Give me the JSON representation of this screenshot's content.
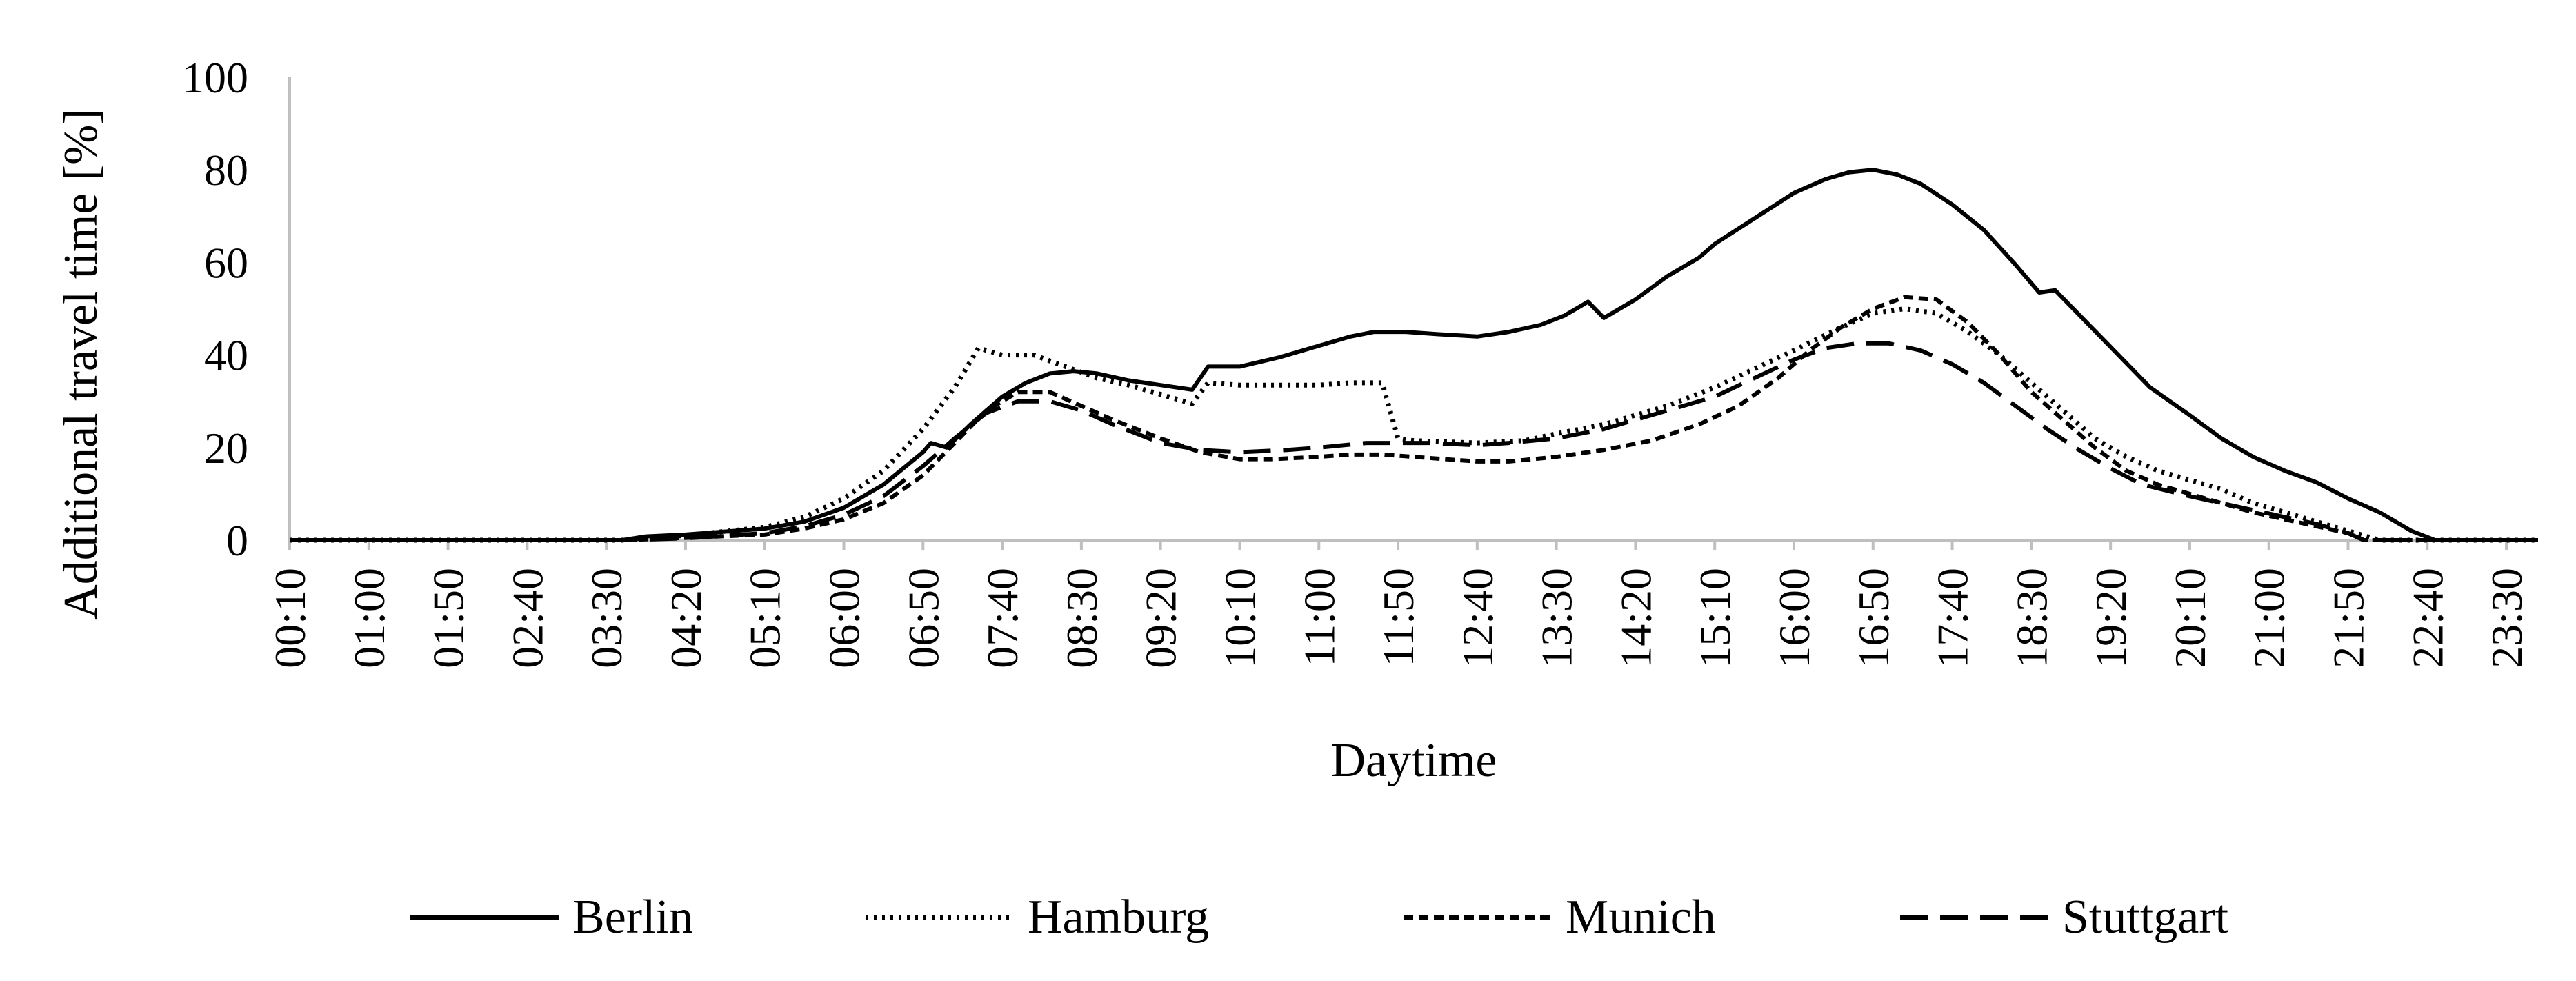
{
  "chart_data": {
    "type": "line",
    "title": "",
    "xlabel": "Daytime",
    "ylabel": "Additional travel time [%]",
    "ylim": [
      0,
      100
    ],
    "yticks": [
      0,
      20,
      40,
      60,
      80,
      100
    ],
    "xticks": [
      "00:10",
      "01:00",
      "01:50",
      "02:40",
      "03:30",
      "04:20",
      "05:10",
      "06:00",
      "06:50",
      "07:40",
      "08:30",
      "09:20",
      "10:10",
      "11:00",
      "11:50",
      "12:40",
      "13:30",
      "14:20",
      "15:10",
      "16:00",
      "16:50",
      "17:40",
      "18:30",
      "19:20",
      "20:10",
      "21:00",
      "21:50",
      "22:40",
      "23:30"
    ],
    "xlim": [
      "00:10",
      "23:50"
    ],
    "grid": false,
    "legend_position": "bottom",
    "series": [
      {
        "name": "Berlin",
        "dash": "solid",
        "color": "#000000",
        "points": [
          [
            "00:10",
            0
          ],
          [
            "03:40",
            0
          ],
          [
            "03:55",
            0.8
          ],
          [
            "04:20",
            1.2
          ],
          [
            "05:10",
            2.5
          ],
          [
            "05:35",
            4
          ],
          [
            "06:00",
            7
          ],
          [
            "06:25",
            12
          ],
          [
            "06:50",
            19
          ],
          [
            "06:55",
            21
          ],
          [
            "07:05",
            20
          ],
          [
            "07:20",
            25
          ],
          [
            "07:40",
            31
          ],
          [
            "07:55",
            34
          ],
          [
            "08:10",
            36
          ],
          [
            "08:25",
            36.5
          ],
          [
            "08:40",
            36
          ],
          [
            "09:00",
            34.5
          ],
          [
            "09:20",
            33.5
          ],
          [
            "09:40",
            32.5
          ],
          [
            "09:50",
            37.5
          ],
          [
            "10:10",
            37.5
          ],
          [
            "10:35",
            39.5
          ],
          [
            "11:00",
            42
          ],
          [
            "11:20",
            44
          ],
          [
            "11:35",
            45
          ],
          [
            "11:55",
            45
          ],
          [
            "12:15",
            44.5
          ],
          [
            "12:40",
            44
          ],
          [
            "13:00",
            45
          ],
          [
            "13:20",
            46.5
          ],
          [
            "13:35",
            48.5
          ],
          [
            "13:50",
            51.5
          ],
          [
            "14:00",
            48
          ],
          [
            "14:20",
            52
          ],
          [
            "14:40",
            57
          ],
          [
            "15:00",
            61
          ],
          [
            "15:10",
            64
          ],
          [
            "15:35",
            69.5
          ],
          [
            "16:00",
            75
          ],
          [
            "16:20",
            78
          ],
          [
            "16:35",
            79.5
          ],
          [
            "16:50",
            80
          ],
          [
            "17:05",
            79
          ],
          [
            "17:20",
            77
          ],
          [
            "17:40",
            72.5
          ],
          [
            "18:00",
            67
          ],
          [
            "18:20",
            59.5
          ],
          [
            "18:35",
            53.5
          ],
          [
            "18:45",
            54
          ],
          [
            "19:05",
            47
          ],
          [
            "19:25",
            40
          ],
          [
            "19:45",
            33
          ],
          [
            "20:10",
            27
          ],
          [
            "20:30",
            22
          ],
          [
            "20:50",
            18
          ],
          [
            "21:10",
            15
          ],
          [
            "21:30",
            12.5
          ],
          [
            "21:50",
            9
          ],
          [
            "22:10",
            6
          ],
          [
            "22:30",
            2
          ],
          [
            "22:45",
            0
          ],
          [
            "23:50",
            0
          ]
        ]
      },
      {
        "name": "Hamburg",
        "dash": "dotted",
        "color": "#000000",
        "points": [
          [
            "00:10",
            0
          ],
          [
            "03:40",
            0
          ],
          [
            "03:55",
            0.5
          ],
          [
            "04:20",
            1
          ],
          [
            "05:10",
            2.8
          ],
          [
            "05:35",
            5
          ],
          [
            "06:00",
            9
          ],
          [
            "06:25",
            15
          ],
          [
            "06:50",
            24
          ],
          [
            "07:10",
            33
          ],
          [
            "07:25",
            41.5
          ],
          [
            "07:40",
            40
          ],
          [
            "08:00",
            40
          ],
          [
            "08:20",
            37.5
          ],
          [
            "08:40",
            35
          ],
          [
            "09:00",
            33.5
          ],
          [
            "09:20",
            31.5
          ],
          [
            "09:40",
            29.5
          ],
          [
            "09:50",
            34
          ],
          [
            "10:10",
            33.5
          ],
          [
            "10:40",
            33.5
          ],
          [
            "11:00",
            33.5
          ],
          [
            "11:20",
            34
          ],
          [
            "11:40",
            34
          ],
          [
            "11:50",
            22
          ],
          [
            "12:00",
            21.5
          ],
          [
            "12:40",
            21
          ],
          [
            "13:10",
            21.5
          ],
          [
            "13:30",
            23
          ],
          [
            "14:00",
            25
          ],
          [
            "14:20",
            27
          ],
          [
            "14:40",
            29
          ],
          [
            "15:10",
            33
          ],
          [
            "15:35",
            37
          ],
          [
            "16:00",
            41
          ],
          [
            "16:30",
            46
          ],
          [
            "16:50",
            49
          ],
          [
            "17:10",
            50
          ],
          [
            "17:30",
            49
          ],
          [
            "17:50",
            45
          ],
          [
            "18:10",
            40
          ],
          [
            "18:30",
            34
          ],
          [
            "18:50",
            28
          ],
          [
            "19:10",
            22
          ],
          [
            "19:30",
            18
          ],
          [
            "19:50",
            15
          ],
          [
            "20:10",
            13
          ],
          [
            "20:30",
            11
          ],
          [
            "20:50",
            8
          ],
          [
            "21:10",
            6
          ],
          [
            "21:30",
            4
          ],
          [
            "21:50",
            2
          ],
          [
            "22:10",
            0
          ],
          [
            "23:50",
            0
          ]
        ]
      },
      {
        "name": "Munich",
        "dash": "short-dash",
        "color": "#000000",
        "points": [
          [
            "00:10",
            0
          ],
          [
            "03:40",
            0
          ],
          [
            "04:20",
            0.5
          ],
          [
            "05:10",
            1.2
          ],
          [
            "05:35",
            2.5
          ],
          [
            "06:00",
            4.5
          ],
          [
            "06:25",
            8
          ],
          [
            "06:50",
            14
          ],
          [
            "07:10",
            21
          ],
          [
            "07:30",
            28
          ],
          [
            "07:50",
            32
          ],
          [
            "08:10",
            32
          ],
          [
            "08:30",
            29
          ],
          [
            "08:50",
            26
          ],
          [
            "09:20",
            22
          ],
          [
            "09:45",
            19
          ],
          [
            "10:10",
            17.5
          ],
          [
            "10:30",
            17.5
          ],
          [
            "11:00",
            18
          ],
          [
            "11:20",
            18.5
          ],
          [
            "11:40",
            18.5
          ],
          [
            "12:00",
            18
          ],
          [
            "12:20",
            17.5
          ],
          [
            "12:40",
            17
          ],
          [
            "13:00",
            17
          ],
          [
            "13:30",
            18
          ],
          [
            "14:00",
            19.5
          ],
          [
            "14:30",
            21.5
          ],
          [
            "15:00",
            25
          ],
          [
            "15:25",
            29
          ],
          [
            "15:50",
            35
          ],
          [
            "16:10",
            41
          ],
          [
            "16:30",
            46
          ],
          [
            "16:50",
            50
          ],
          [
            "17:10",
            52.5
          ],
          [
            "17:30",
            52
          ],
          [
            "17:50",
            47
          ],
          [
            "18:10",
            40
          ],
          [
            "18:30",
            32
          ],
          [
            "18:50",
            26
          ],
          [
            "19:10",
            20
          ],
          [
            "19:30",
            15
          ],
          [
            "19:50",
            12
          ],
          [
            "20:10",
            10
          ],
          [
            "20:30",
            8
          ],
          [
            "20:50",
            6
          ],
          [
            "21:10",
            4.5
          ],
          [
            "21:30",
            3
          ],
          [
            "21:50",
            1.5
          ],
          [
            "22:00",
            0
          ],
          [
            "23:50",
            0
          ]
        ]
      },
      {
        "name": "Stuttgart",
        "dash": "long-dash",
        "color": "#000000",
        "points": [
          [
            "00:10",
            0
          ],
          [
            "03:40",
            0
          ],
          [
            "04:20",
            0.4
          ],
          [
            "05:10",
            1.5
          ],
          [
            "05:35",
            3
          ],
          [
            "06:00",
            5.5
          ],
          [
            "06:25",
            9.5
          ],
          [
            "06:50",
            16
          ],
          [
            "07:10",
            22
          ],
          [
            "07:30",
            27.5
          ],
          [
            "07:50",
            30
          ],
          [
            "08:10",
            30
          ],
          [
            "08:30",
            28
          ],
          [
            "08:50",
            25
          ],
          [
            "09:20",
            21
          ],
          [
            "09:45",
            19.5
          ],
          [
            "10:10",
            19
          ],
          [
            "10:40",
            19.5
          ],
          [
            "11:00",
            20
          ],
          [
            "11:30",
            21
          ],
          [
            "11:50",
            21
          ],
          [
            "12:10",
            21
          ],
          [
            "12:40",
            20.5
          ],
          [
            "13:00",
            21
          ],
          [
            "13:30",
            22
          ],
          [
            "14:00",
            24
          ],
          [
            "14:20",
            26
          ],
          [
            "14:40",
            28
          ],
          [
            "15:10",
            31
          ],
          [
            "15:35",
            35
          ],
          [
            "16:00",
            39
          ],
          [
            "16:20",
            41.5
          ],
          [
            "16:40",
            42.5
          ],
          [
            "17:00",
            42.5
          ],
          [
            "17:20",
            41
          ],
          [
            "17:40",
            38
          ],
          [
            "18:00",
            34
          ],
          [
            "18:20",
            29
          ],
          [
            "18:40",
            24
          ],
          [
            "19:00",
            19.5
          ],
          [
            "19:20",
            15.5
          ],
          [
            "19:40",
            12
          ],
          [
            "20:10",
            9.5
          ],
          [
            "20:30",
            8
          ],
          [
            "20:50",
            6.5
          ],
          [
            "21:10",
            5
          ],
          [
            "21:30",
            3.5
          ],
          [
            "21:50",
            1.5
          ],
          [
            "22:00",
            0
          ],
          [
            "23:50",
            0
          ]
        ]
      }
    ]
  }
}
